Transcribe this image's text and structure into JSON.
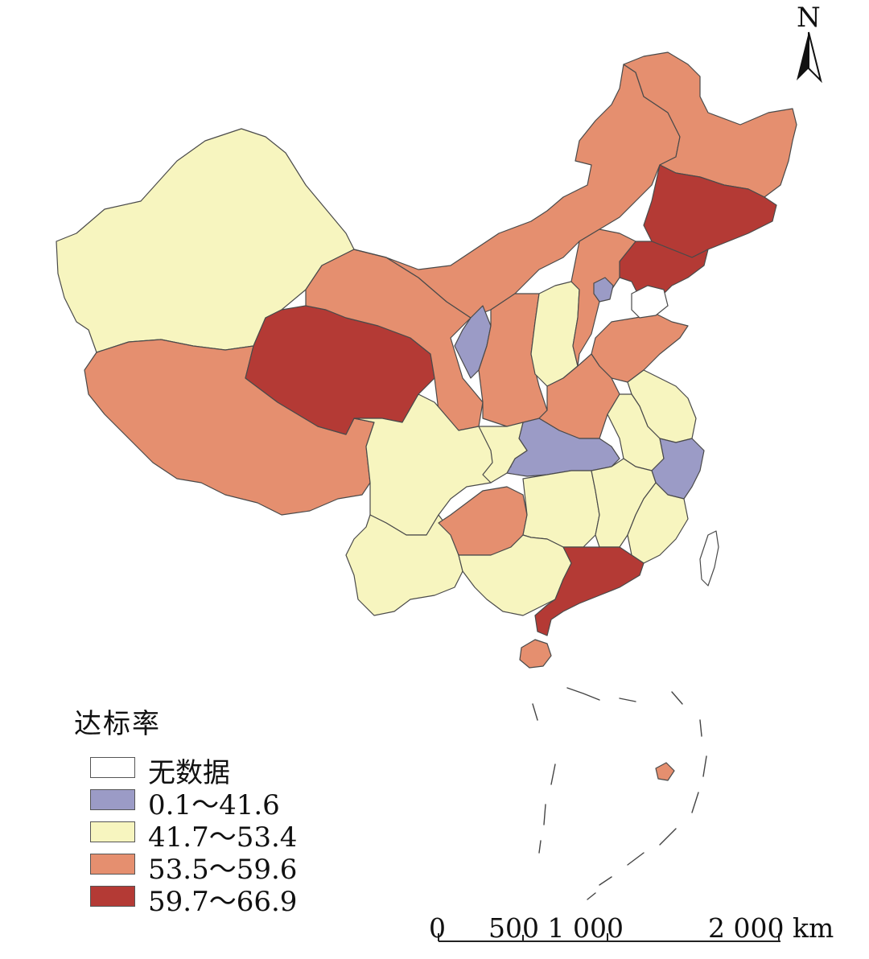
{
  "legend": {
    "title": "达标率",
    "items": [
      {
        "label": "无数据",
        "color": "#ffffff"
      },
      {
        "label": "0.1～41.6",
        "color": "#9b9bc6"
      },
      {
        "label": "41.7～53.4",
        "color": "#f7f5bf"
      },
      {
        "label": "53.5～59.6",
        "color": "#e58f6f"
      },
      {
        "label": "59.7～66.9",
        "color": "#b43a35"
      }
    ]
  },
  "north_arrow": {
    "label": "N"
  },
  "scale_bar": {
    "labels": [
      "0",
      "500 1 000",
      "2 000 km"
    ]
  },
  "map_data": {
    "classes": {
      "no_data": "#ffffff",
      "low": "#9b9bc6",
      "mid": "#f7f5bf",
      "high": "#e58f6f",
      "top": "#b43a35"
    },
    "regions": [
      {
        "name": "Xinjiang",
        "class": "mid"
      },
      {
        "name": "Tibet",
        "class": "high"
      },
      {
        "name": "Qinghai",
        "class": "top"
      },
      {
        "name": "Gansu",
        "class": "high"
      },
      {
        "name": "Inner Mongolia",
        "class": "high"
      },
      {
        "name": "Heilongjiang",
        "class": "high"
      },
      {
        "name": "Jilin",
        "class": "top"
      },
      {
        "name": "Liaoning",
        "class": "top"
      },
      {
        "name": "Ningxia",
        "class": "low"
      },
      {
        "name": "Shaanxi",
        "class": "high"
      },
      {
        "name": "Shanxi",
        "class": "mid"
      },
      {
        "name": "Beijing",
        "class": "low"
      },
      {
        "name": "Hebei",
        "class": "high"
      },
      {
        "name": "Shandong",
        "class": "high"
      },
      {
        "name": "Henan",
        "class": "high"
      },
      {
        "name": "Hubei",
        "class": "low"
      },
      {
        "name": "Zhejiang",
        "class": "low"
      },
      {
        "name": "Jiangsu",
        "class": "mid"
      },
      {
        "name": "Anhui",
        "class": "mid"
      },
      {
        "name": "Sichuan",
        "class": "mid"
      },
      {
        "name": "Chongqing",
        "class": "mid"
      },
      {
        "name": "Yunnan",
        "class": "mid"
      },
      {
        "name": "Guizhou",
        "class": "high"
      },
      {
        "name": "Hunan",
        "class": "mid"
      },
      {
        "name": "Jiangxi",
        "class": "mid"
      },
      {
        "name": "Fujian",
        "class": "mid"
      },
      {
        "name": "Guangxi",
        "class": "mid"
      },
      {
        "name": "Guangdong",
        "class": "top"
      },
      {
        "name": "Hainan",
        "class": "high"
      },
      {
        "name": "Taiwan",
        "class": "no_data"
      }
    ]
  }
}
